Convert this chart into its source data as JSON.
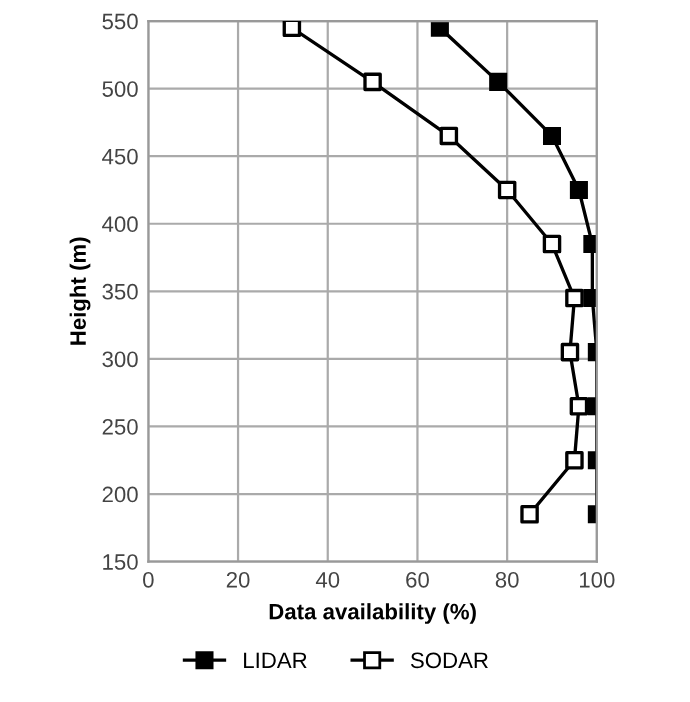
{
  "chart_data": {
    "type": "line",
    "xlabel": "Data availability (%)",
    "ylabel": "Height (m)",
    "series": [
      {
        "name": "LIDAR",
        "color": "#000000",
        "marker": "square",
        "x": [
          65,
          78,
          90,
          96,
          99,
          99,
          100,
          100,
          100,
          100
        ],
        "values": [
          545,
          505,
          465,
          425,
          385,
          345,
          305,
          265,
          225,
          185
        ]
      },
      {
        "name": "SODAR",
        "color": "#000000",
        "marker": "square",
        "colors": [
          "#ffffff",
          "#ffffff",
          "#ffffff",
          "#ffffff",
          "#ffffff",
          "#ffffff",
          "#ffffff",
          "#ffffff",
          "#ffffff",
          "#ffffff"
        ],
        "x": [
          32,
          50,
          67,
          80,
          90,
          95,
          94,
          96,
          95,
          85
        ],
        "values": [
          545,
          505,
          465,
          425,
          385,
          345,
          305,
          265,
          225,
          185
        ]
      }
    ],
    "xlim": [
      0,
      100
    ],
    "xticks": [
      0,
      20,
      40,
      60,
      80,
      100
    ],
    "ylim": [
      150,
      550
    ],
    "yticks": [
      150,
      200,
      250,
      300,
      350,
      400,
      450,
      500,
      550
    ],
    "grid": true,
    "legend": "bottom",
    "line_style": "solid"
  }
}
